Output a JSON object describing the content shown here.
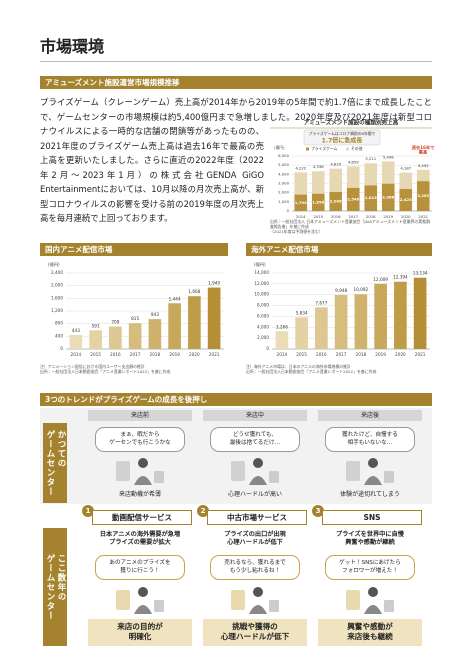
{
  "header": {
    "title": "市場環境"
  },
  "market_section": {
    "heading": "アミューズメント施設運営市場規模推移",
    "body": "プライズゲーム（クレーンゲーム）売上高が2014年から2019年の5年間で約1.7倍にまで成長したことで、ゲームセンターの市場規模は約5,400億円まで急増しました。2020年度及び2021年度は新型コロナウイルスによる一時的な店舗の閉鎖等があったものの、2021年度のプライズゲーム売上高は過去16年で最高の売上高を更新いたしました。さらに直近の2022年度（2022年2月～2023年1月）の株式会社GENDA GiGO Entertainmentにおいては、10月以降の月次売上高が、新型コロナウイルスの影響を受ける前の2019年度の月次売上高を毎月連続で上回っております。",
    "chart": {
      "type": "stacked_bar",
      "title": "アミューズメント施設の種類別売上高",
      "y_label": "(億円)",
      "categories": [
        "2014",
        "2015",
        "2016",
        "2017",
        "2018",
        "2019",
        "2020",
        "2021"
      ],
      "series": [
        {
          "name": "プライズゲーム",
          "color": "#b8913c",
          "values": [
            1794,
            1896,
            2096,
            2540,
            2813,
            2986,
            2423,
            3262
          ],
          "value_labels": [
            "1,794",
            "1,896",
            "2,096",
            "2,540",
            "2,813",
            "2,986",
            "2,423",
            "3,262"
          ]
        },
        {
          "name": "その他",
          "color": "#e6d8b3",
          "values": [
            2428,
            2442,
            2524,
            2319,
            2398,
            2422,
            1764,
            1230
          ]
        }
      ],
      "total_labels": [
        "4,222",
        "4,338",
        "4,620",
        "4,859",
        "5,211",
        "5,408",
        "4,187",
        "4,492"
      ],
      "ylim": [
        0,
        6000
      ],
      "yticks": [
        0,
        {
          "value": 1000,
          "label": "1,000"
        },
        {
          "value": 2000,
          "label": "2,000"
        },
        {
          "value": 3000,
          "label": "3,000"
        },
        {
          "value": 4000,
          "label": "4,000"
        },
        {
          "value": 5000,
          "label": "5,000"
        },
        {
          "value": 6000,
          "label": "6,000"
        }
      ],
      "grid": true,
      "annotation_lead": "プライズゲームはコロナ禍前の6年間で",
      "annotation_main": "1.7倍に急成長",
      "annotation_record": "過去16年で\n最高",
      "source": "出所：一般社団法人 日本アミューズメント産業協会「JAIAアミューズメント産業界の実態調査報告書」を基に作成\n（2021年度は予測値を含む）"
    }
  },
  "domestic_anime": {
    "type": "bar",
    "title": "国内アニメ配信市場",
    "y_label": "(億円)",
    "categories": [
      "2014",
      "2015",
      "2016",
      "2017",
      "2018",
      "2019",
      "2020",
      "2021"
    ],
    "values": [
      443,
      591,
      709,
      815,
      943,
      1444,
      1668,
      1940
    ],
    "value_labels": [
      "443",
      "591",
      "709",
      "815",
      "943",
      "1,444",
      "1,668",
      "1,940"
    ],
    "colors": [
      "#eadcb6",
      "#e4d2a3",
      "#ddc891",
      "#d6bd7e",
      "#cfb26b",
      "#c7a759",
      "#bf9c47",
      "#b58f35"
    ],
    "ylim": [
      0,
      2400
    ],
    "yticks": [
      0,
      400,
      800,
      {
        "value": 1200,
        "label": "1,200"
      },
      {
        "value": 1600,
        "label": "1,600"
      },
      {
        "value": 2000,
        "label": "2,000"
      },
      {
        "value": 2400,
        "label": "2,400"
      }
    ],
    "grid": true,
    "note": "注）アニメーション配信における国内ユーザー支出額の推計\n出所：一般社団法人日本動画協会「アニメ産業レポート2022」を基に作成"
  },
  "overseas_anime": {
    "type": "bar",
    "title": "海外アニメ配信市場",
    "y_label": "(億円)",
    "categories": [
      "2014",
      "2015",
      "2016",
      "2017",
      "2018",
      "2019",
      "2020",
      "2021"
    ],
    "values": [
      3266,
      5834,
      7677,
      9948,
      10092,
      12009,
      12394,
      13134
    ],
    "value_labels": [
      "3,266",
      "5,834",
      "7,677",
      "9,948",
      "10,092",
      "12,009",
      "12,394",
      "13,134"
    ],
    "colors": [
      "#eadcb6",
      "#e4d2a3",
      "#ddc891",
      "#d6bd7e",
      "#cfb26b",
      "#c7a759",
      "#bf9c47",
      "#b58f35"
    ],
    "ylim": [
      0,
      14000
    ],
    "yticks": [
      0,
      {
        "value": 2000,
        "label": "2,000"
      },
      {
        "value": 4000,
        "label": "4,000"
      },
      {
        "value": 6000,
        "label": "6,000"
      },
      {
        "value": 8000,
        "label": "8,000"
      },
      {
        "value": 10000,
        "label": "10,000"
      },
      {
        "value": 12000,
        "label": "12,000"
      },
      {
        "value": 14000,
        "label": "14,000"
      }
    ],
    "grid": true,
    "note": "注）海外アニメ市場は、日本のアニメの海外市場規模の推計\n出所：一般社団法人日本動画協会「アニメ産業レポート2022」を基に作成"
  },
  "trends": {
    "heading": "3つのトレンドがプライズゲームの成長を後押し",
    "phases": [
      "来店前",
      "来店中",
      "来店後"
    ],
    "before_label": "かつての\nゲームセンター",
    "after_label": "ここ数年の\nゲームセンター",
    "before": [
      {
        "bubble": "まぁ、暇だから\nゲーセンでも行こうかな",
        "caption": "来店動機が希薄"
      },
      {
        "bubble": "どうせ獲れても、\n最後は捨てるだけ…",
        "caption": "心理ハードルが高い"
      },
      {
        "bubble": "獲れたけど、自慢する\n相手もいないな…",
        "caption": "体験が途切れてしまう"
      }
    ],
    "items": [
      {
        "number": 1,
        "service": "動画配信サービス",
        "effect": "日本アニメの海外需要が急増\nプライズの需要が拡大",
        "bubble": "あのアニメのプライズを\n獲りに行こう！",
        "result": "来店の目的が\n明確化"
      },
      {
        "number": 2,
        "service": "中古市場サービス",
        "effect": "プライズの出口が出現\n心理ハードルが低下",
        "bubble": "売れるなら、獲れるまで\nもう少し粘れるね！",
        "result": "挑戦や獲得の\n心理ハードルが低下"
      },
      {
        "number": 3,
        "service": "SNS",
        "effect": "プライズを世界中に自慢\n興奮や感動が継続",
        "bubble": "ゲット！SNSにあげたら\nフォロワーが増えた！",
        "result": "興奮や感動が\n来店後も継続"
      }
    ]
  }
}
